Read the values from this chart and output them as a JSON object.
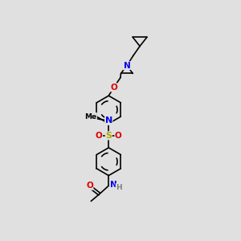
{
  "bg_color": "#e0e0e0",
  "bond_color": "#000000",
  "N_color": "#0000ee",
  "O_color": "#dd0000",
  "S_color": "#aaaa00",
  "H_color": "#808080",
  "lw": 1.2,
  "fig_w": 3.0,
  "fig_h": 3.0,
  "dpi": 100,
  "xlim": [
    0,
    10
  ],
  "ylim": [
    0,
    10
  ]
}
